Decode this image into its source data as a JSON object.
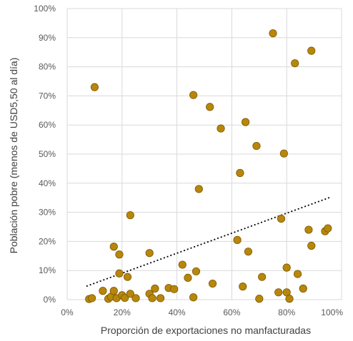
{
  "chart_data": {
    "type": "scatter",
    "title": "",
    "xlabel": "Proporción de exportaciones no manfacturadas",
    "ylabel": "Población pobre (menos de USD5,50 al día)",
    "xlim": [
      0,
      100
    ],
    "ylim": [
      0,
      100
    ],
    "x_ticks": [
      "0%",
      "20%",
      "40%",
      "60%",
      "80%",
      "100%"
    ],
    "y_ticks": [
      "0%",
      "10%",
      "20%",
      "30%",
      "40%",
      "50%",
      "60%",
      "70%",
      "80%",
      "90%",
      "100%"
    ],
    "grid": "vertical and horizontal",
    "colors": {
      "points": "#B8860B",
      "point_edge": "#7A5A00",
      "trendline": "#000000",
      "grid": "#D9D9D9"
    },
    "points": [
      {
        "x": 8,
        "y": 0.2
      },
      {
        "x": 9,
        "y": 0.5
      },
      {
        "x": 10,
        "y": 73
      },
      {
        "x": 13,
        "y": 3
      },
      {
        "x": 15,
        "y": 0.3
      },
      {
        "x": 16,
        "y": 1
      },
      {
        "x": 17,
        "y": 3
      },
      {
        "x": 17,
        "y": 18.2
      },
      {
        "x": 18,
        "y": 0.5
      },
      {
        "x": 19,
        "y": 15.5
      },
      {
        "x": 19,
        "y": 9
      },
      {
        "x": 20,
        "y": 1.5
      },
      {
        "x": 21,
        "y": 0.6
      },
      {
        "x": 22,
        "y": 7.8
      },
      {
        "x": 23,
        "y": 2
      },
      {
        "x": 23,
        "y": 29
      },
      {
        "x": 25,
        "y": 0.5
      },
      {
        "x": 30,
        "y": 2
      },
      {
        "x": 30,
        "y": 16
      },
      {
        "x": 31,
        "y": 0.5
      },
      {
        "x": 32,
        "y": 3.8
      },
      {
        "x": 34,
        "y": 0.5
      },
      {
        "x": 37,
        "y": 4
      },
      {
        "x": 39,
        "y": 3.6
      },
      {
        "x": 42,
        "y": 12
      },
      {
        "x": 44,
        "y": 7.5
      },
      {
        "x": 46,
        "y": 0.8
      },
      {
        "x": 46,
        "y": 70.3
      },
      {
        "x": 47,
        "y": 9.7
      },
      {
        "x": 48,
        "y": 38
      },
      {
        "x": 52,
        "y": 66.2
      },
      {
        "x": 53,
        "y": 5.5
      },
      {
        "x": 56,
        "y": 58.8
      },
      {
        "x": 62,
        "y": 20.5
      },
      {
        "x": 63,
        "y": 43.5
      },
      {
        "x": 64,
        "y": 4.5
      },
      {
        "x": 65,
        "y": 61
      },
      {
        "x": 66,
        "y": 16.5
      },
      {
        "x": 69,
        "y": 52.8
      },
      {
        "x": 70,
        "y": 0.3
      },
      {
        "x": 71,
        "y": 7.8
      },
      {
        "x": 75,
        "y": 91.5
      },
      {
        "x": 77,
        "y": 2.5
      },
      {
        "x": 78,
        "y": 27.8
      },
      {
        "x": 79,
        "y": 50.2
      },
      {
        "x": 80,
        "y": 2.5
      },
      {
        "x": 80,
        "y": 11
      },
      {
        "x": 81,
        "y": 0.3
      },
      {
        "x": 83,
        "y": 81.2
      },
      {
        "x": 84,
        "y": 8.8
      },
      {
        "x": 86,
        "y": 3.8
      },
      {
        "x": 88,
        "y": 24
      },
      {
        "x": 89,
        "y": 18.5
      },
      {
        "x": 89,
        "y": 85.5
      },
      {
        "x": 94,
        "y": 23.5
      },
      {
        "x": 95,
        "y": 24.5
      }
    ],
    "trendline": {
      "style": "dotted",
      "x": [
        7,
        96
      ],
      "y": [
        4.6,
        35.2
      ]
    }
  }
}
